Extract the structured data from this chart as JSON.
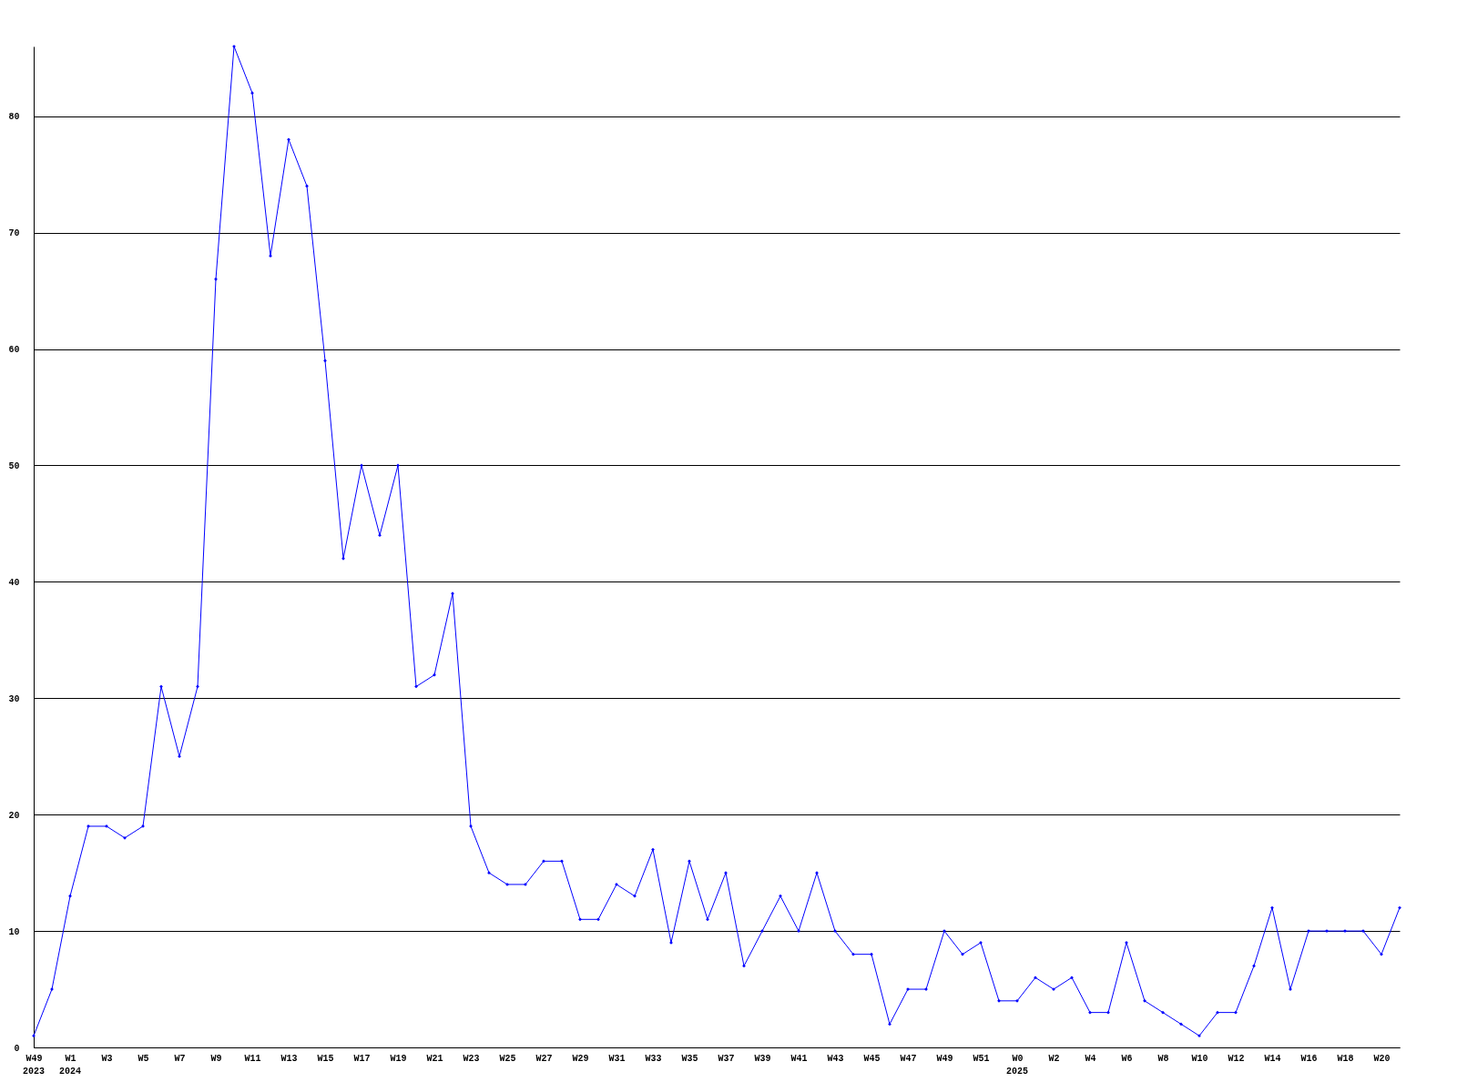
{
  "chart_data": {
    "type": "line",
    "categories": [
      "W49",
      null,
      "W1",
      null,
      "W3",
      null,
      "W5",
      null,
      "W7",
      null,
      "W9",
      null,
      "W11",
      null,
      "W13",
      null,
      "W15",
      null,
      "W17",
      null,
      "W19",
      null,
      "W21",
      null,
      "W23",
      null,
      "W25",
      null,
      "W27",
      null,
      "W29",
      null,
      "W31",
      null,
      "W33",
      null,
      "W35",
      null,
      "W37",
      null,
      "W39",
      null,
      "W41",
      null,
      "W43",
      null,
      "W45",
      null,
      "W47",
      null,
      "W49",
      null,
      "W51",
      null,
      "W0",
      null,
      "W2",
      null,
      "W4",
      null,
      "W6",
      null,
      "W8",
      null,
      "W10",
      null,
      "W12",
      null,
      "W14",
      null,
      "W16",
      null,
      "W18",
      null,
      "W20",
      null
    ],
    "series": [
      {
        "color": "#0000ff",
        "values": [
          1,
          5,
          13,
          19,
          19,
          18,
          19,
          31,
          25,
          31,
          66,
          86,
          82,
          68,
          78,
          74,
          59,
          42,
          50,
          44,
          50,
          31,
          32,
          39,
          19,
          15,
          14,
          14,
          16,
          16,
          11,
          11,
          14,
          13,
          17,
          9,
          16,
          11,
          15,
          7,
          10,
          13,
          10,
          15,
          10,
          8,
          8,
          2,
          5,
          5,
          10,
          8,
          9,
          4,
          4,
          6,
          5,
          6,
          3,
          3,
          9,
          4,
          3,
          2,
          1,
          3,
          3,
          7,
          12,
          5,
          10,
          10,
          10,
          10,
          8,
          12
        ]
      }
    ],
    "ylim": [
      0,
      86
    ],
    "yticks": [
      0,
      10,
      20,
      30,
      40,
      50,
      60,
      70,
      80
    ],
    "grid": "y",
    "marker": "diamond",
    "line_style": "solid",
    "annotations": [
      "2023",
      "2024",
      "2025"
    ]
  }
}
